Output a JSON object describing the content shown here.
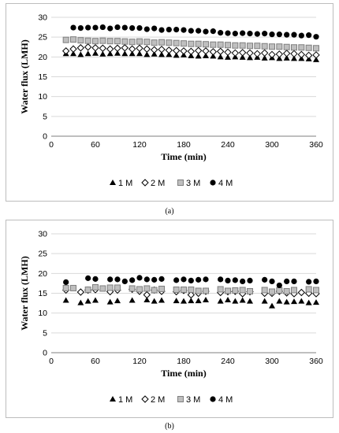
{
  "captions": [
    "(a)",
    "(b)"
  ],
  "chart_data": [
    {
      "type": "scatter",
      "panel": "(a)",
      "xlabel": "Time (min)",
      "ylabel": "Water flux (LMH)",
      "xlim": [
        0,
        360
      ],
      "ylim": [
        0,
        30
      ],
      "xticks": [
        0,
        60,
        120,
        180,
        240,
        300,
        360
      ],
      "yticks": [
        0,
        5,
        10,
        15,
        20,
        25,
        30
      ],
      "grid": "horizontal",
      "legend_position": "bottom",
      "series": [
        {
          "name": "1 M",
          "marker": "triangle",
          "x": [
            20,
            30,
            40,
            50,
            60,
            70,
            80,
            90,
            100,
            110,
            120,
            130,
            140,
            150,
            160,
            170,
            180,
            190,
            200,
            210,
            220,
            230,
            240,
            250,
            260,
            270,
            280,
            290,
            300,
            310,
            320,
            330,
            340,
            350,
            360
          ],
          "y": [
            20.8,
            20.8,
            20.6,
            20.8,
            20.9,
            20.7,
            20.8,
            20.9,
            20.8,
            20.8,
            20.8,
            20.6,
            20.7,
            20.6,
            20.6,
            20.4,
            20.5,
            20.3,
            20.2,
            20.3,
            20.2,
            20.0,
            19.9,
            20.0,
            19.9,
            19.8,
            19.9,
            19.7,
            19.8,
            19.6,
            19.7,
            19.6,
            19.6,
            19.5,
            19.3
          ]
        },
        {
          "name": "2 M",
          "marker": "diamond",
          "x": [
            20,
            30,
            40,
            50,
            60,
            70,
            80,
            90,
            100,
            110,
            120,
            130,
            140,
            150,
            160,
            170,
            180,
            190,
            200,
            210,
            220,
            230,
            240,
            250,
            260,
            270,
            280,
            290,
            300,
            310,
            320,
            330,
            340,
            350,
            360
          ],
          "y": [
            21.5,
            22.0,
            22.3,
            22.5,
            22.3,
            22.2,
            22.0,
            22.2,
            22.3,
            22.0,
            22.2,
            22.0,
            21.8,
            21.9,
            21.7,
            21.6,
            21.5,
            21.4,
            21.6,
            21.5,
            21.3,
            21.4,
            21.2,
            21.0,
            21.1,
            21.0,
            20.8,
            21.0,
            20.6,
            20.7,
            20.9,
            20.8,
            20.6,
            20.4,
            20.5
          ]
        },
        {
          "name": "3 M",
          "marker": "square",
          "x": [
            20,
            30,
            40,
            50,
            60,
            70,
            80,
            90,
            100,
            110,
            120,
            130,
            140,
            150,
            160,
            170,
            180,
            190,
            200,
            210,
            220,
            230,
            240,
            250,
            260,
            270,
            280,
            290,
            300,
            310,
            320,
            330,
            340,
            350,
            360
          ],
          "y": [
            24.3,
            24.4,
            24.2,
            24.1,
            24.0,
            24.1,
            24.0,
            24.0,
            23.9,
            23.8,
            23.9,
            23.8,
            23.6,
            23.7,
            23.6,
            23.5,
            23.4,
            23.3,
            23.3,
            23.2,
            23.1,
            23.1,
            23.0,
            22.9,
            22.9,
            22.8,
            22.8,
            22.7,
            22.6,
            22.6,
            22.5,
            22.4,
            22.4,
            22.3,
            22.2
          ]
        },
        {
          "name": "4 M",
          "marker": "circle",
          "x": [
            30,
            40,
            50,
            60,
            70,
            80,
            90,
            100,
            110,
            120,
            130,
            140,
            150,
            160,
            170,
            180,
            190,
            200,
            210,
            220,
            230,
            240,
            250,
            260,
            270,
            280,
            290,
            300,
            310,
            320,
            330,
            340,
            350,
            360
          ],
          "y": [
            27.4,
            27.3,
            27.4,
            27.4,
            27.5,
            27.2,
            27.5,
            27.4,
            27.3,
            27.3,
            27.0,
            27.2,
            26.8,
            26.9,
            26.9,
            26.8,
            26.6,
            26.6,
            26.4,
            26.5,
            26.1,
            26.0,
            25.9,
            26.0,
            25.9,
            25.8,
            25.9,
            25.7,
            25.7,
            25.6,
            25.6,
            25.4,
            25.5,
            25.1
          ]
        }
      ]
    },
    {
      "type": "scatter",
      "panel": "(b)",
      "xlabel": "Time (min)",
      "ylabel": "Water flux (LMH)",
      "xlim": [
        0,
        360
      ],
      "ylim": [
        0,
        30
      ],
      "xticks": [
        0,
        60,
        120,
        180,
        240,
        300,
        360
      ],
      "yticks": [
        0,
        5,
        10,
        15,
        20,
        25,
        30
      ],
      "grid": "horizontal",
      "legend_position": "bottom",
      "series": [
        {
          "name": "1 M",
          "marker": "triangle",
          "x": [
            20,
            40,
            50,
            60,
            80,
            90,
            110,
            130,
            140,
            150,
            170,
            180,
            190,
            200,
            210,
            230,
            240,
            250,
            260,
            270,
            290,
            300,
            310,
            320,
            330,
            340,
            350,
            360
          ],
          "y": [
            13.2,
            12.6,
            13.0,
            13.2,
            12.8,
            13.1,
            13.2,
            13.3,
            13.0,
            13.2,
            13.1,
            13.0,
            13.1,
            13.1,
            13.3,
            13.0,
            13.3,
            13.0,
            13.2,
            13.0,
            13.0,
            11.8,
            13.0,
            12.8,
            12.9,
            13.0,
            12.6,
            12.7
          ]
        },
        {
          "name": "2 M",
          "marker": "diamond",
          "x": [
            20,
            40,
            50,
            60,
            80,
            90,
            110,
            120,
            130,
            140,
            150,
            170,
            180,
            190,
            200,
            210,
            230,
            240,
            250,
            260,
            270,
            290,
            300,
            310,
            320,
            330,
            340,
            350,
            360
          ],
          "y": [
            15.8,
            15.3,
            15.8,
            15.9,
            15.4,
            15.8,
            16.0,
            15.5,
            14.6,
            15.8,
            15.5,
            15.4,
            15.7,
            14.6,
            15.0,
            15.5,
            15.2,
            15.4,
            15.5,
            14.9,
            15.4,
            15.0,
            15.0,
            15.5,
            15.1,
            14.9,
            15.2,
            15.0,
            14.9
          ]
        },
        {
          "name": "3 M",
          "marker": "square",
          "x": [
            20,
            30,
            50,
            60,
            70,
            80,
            90,
            110,
            120,
            130,
            140,
            150,
            170,
            180,
            190,
            200,
            210,
            230,
            240,
            250,
            260,
            270,
            290,
            300,
            310,
            320,
            330,
            350,
            360
          ],
          "y": [
            16.3,
            16.3,
            15.9,
            16.5,
            16.2,
            16.4,
            16.4,
            16.2,
            16.0,
            16.2,
            15.8,
            16.1,
            15.9,
            15.9,
            15.9,
            15.6,
            15.6,
            16.0,
            15.6,
            15.7,
            15.8,
            15.5,
            15.8,
            15.4,
            15.7,
            15.5,
            15.8,
            16.0,
            15.8
          ]
        },
        {
          "name": "4 M",
          "marker": "circle",
          "x": [
            20,
            50,
            60,
            80,
            90,
            100,
            110,
            120,
            130,
            140,
            150,
            170,
            180,
            190,
            200,
            210,
            230,
            240,
            250,
            260,
            270,
            290,
            300,
            310,
            320,
            330,
            350,
            360
          ],
          "y": [
            17.8,
            18.8,
            18.6,
            18.5,
            18.5,
            18.0,
            18.3,
            18.9,
            18.5,
            18.4,
            18.6,
            18.3,
            18.5,
            18.2,
            18.4,
            18.5,
            18.5,
            18.2,
            18.3,
            18.0,
            18.2,
            18.4,
            18.0,
            17.0,
            18.0,
            18.0,
            17.9,
            18.0
          ]
        }
      ]
    }
  ]
}
